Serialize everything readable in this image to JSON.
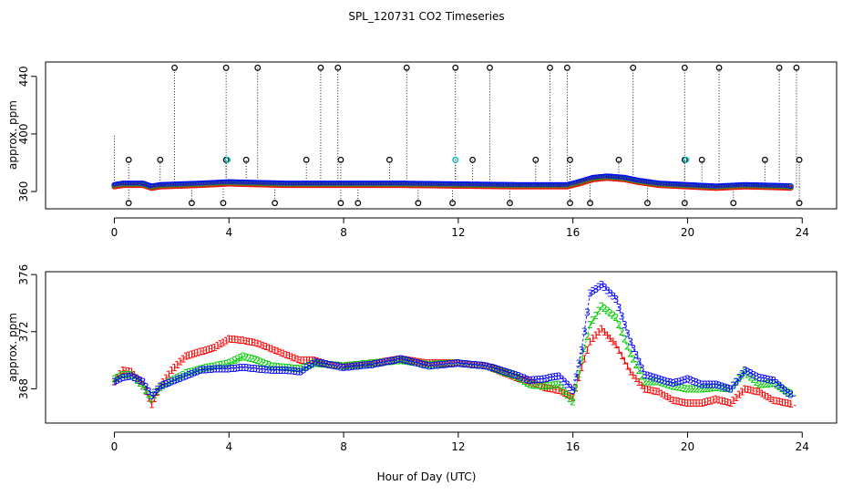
{
  "page_title": "SPL_120731  CO2 Timeseries",
  "common_xlabel": "Hour of Day (UTC)",
  "colors": {
    "axis": "#000000",
    "series1": "#ff0000",
    "series2": "#00cc00",
    "series3": "#0000ff",
    "flag": "#00cccc"
  },
  "chart_data": [
    {
      "type": "scatter",
      "title": "SPL_120731  CO2 Timeseries",
      "xlabel": "",
      "ylabel": "approx. ppm",
      "xlim": [
        0,
        24
      ],
      "ylim": [
        348,
        450
      ],
      "xticks": [
        0,
        4,
        8,
        12,
        16,
        20,
        24
      ],
      "yticks": [
        360,
        400,
        440
      ],
      "baseline": [
        [
          0,
          364
        ],
        [
          0.3,
          365
        ],
        [
          1,
          365
        ],
        [
          1.3,
          363
        ],
        [
          1.6,
          364
        ],
        [
          3,
          365
        ],
        [
          4,
          366
        ],
        [
          6,
          365
        ],
        [
          8,
          365
        ],
        [
          10,
          365
        ],
        [
          12,
          364.5
        ],
        [
          14,
          364
        ],
        [
          15.8,
          364
        ],
        [
          16.2,
          366
        ],
        [
          16.7,
          369
        ],
        [
          17.2,
          370
        ],
        [
          17.8,
          369
        ],
        [
          18.3,
          367
        ],
        [
          19,
          365
        ],
        [
          20,
          364
        ],
        [
          21,
          363
        ],
        [
          22,
          364
        ],
        [
          23,
          363.5
        ],
        [
          23.8,
          363
        ]
      ],
      "spikes_high": [
        2.1,
        3.9,
        5.0,
        7.2,
        7.8,
        10.2,
        11.9,
        13.1,
        15.2,
        15.8,
        18.1,
        19.9,
        21.1,
        23.2,
        23.8
      ],
      "spikes_mid": [
        0.5,
        1.6,
        3.9,
        4.6,
        6.7,
        7.9,
        9.6,
        11.9,
        12.5,
        14.7,
        15.9,
        17.6,
        19.9,
        20.5,
        22.7,
        23.9
      ],
      "spikes_low": [
        0.5,
        2.7,
        3.8,
        5.6,
        7.9,
        8.5,
        10.6,
        11.8,
        13.8,
        15.9,
        16.6,
        18.6,
        19.9,
        21.6,
        23.9
      ],
      "spike_levels": {
        "high": 446,
        "mid": 382,
        "low": 352
      },
      "flag_markers": [
        [
          3.95,
          382
        ],
        [
          11.9,
          382
        ],
        [
          19.95,
          382
        ]
      ]
    },
    {
      "type": "scatter",
      "title": "",
      "xlabel": "Hour of Day (UTC)",
      "ylabel": "approx. ppm",
      "xlim": [
        0,
        24
      ],
      "ylim": [
        365.6,
        376.2
      ],
      "xticks": [
        0,
        4,
        8,
        12,
        16,
        20,
        24
      ],
      "yticks": [
        368,
        372,
        376
      ],
      "gaps": [
        [
          7.9,
          8.0
        ],
        [
          11.9,
          12.0
        ]
      ],
      "series": [
        {
          "name": "1",
          "symbol": "1",
          "color": "#ff0000",
          "points": [
            [
              0,
              368.5
            ],
            [
              0.3,
              369.3
            ],
            [
              0.6,
              369.2
            ],
            [
              1.0,
              368.3
            ],
            [
              1.3,
              366.9
            ],
            [
              1.6,
              368.2
            ],
            [
              2.0,
              369.3
            ],
            [
              2.5,
              370.3
            ],
            [
              3.0,
              370.6
            ],
            [
              3.5,
              370.9
            ],
            [
              4.0,
              371.5
            ],
            [
              4.5,
              371.4
            ],
            [
              5.0,
              371.2
            ],
            [
              5.5,
              370.8
            ],
            [
              6.0,
              370.4
            ],
            [
              6.5,
              370.0
            ],
            [
              7.0,
              370.0
            ],
            [
              7.5,
              369.7
            ],
            [
              8.0,
              369.6
            ],
            [
              9.0,
              369.8
            ],
            [
              10.0,
              370.1
            ],
            [
              11.0,
              369.8
            ],
            [
              12.0,
              369.8
            ],
            [
              13.0,
              369.6
            ],
            [
              14.0,
              368.8
            ],
            [
              14.5,
              368.5
            ],
            [
              15.0,
              368.1
            ],
            [
              15.5,
              367.9
            ],
            [
              16.0,
              367.4
            ],
            [
              16.3,
              369.5
            ],
            [
              16.6,
              371.3
            ],
            [
              17.0,
              372.2
            ],
            [
              17.5,
              371.1
            ],
            [
              18.0,
              369.2
            ],
            [
              18.5,
              368.0
            ],
            [
              19.0,
              367.8
            ],
            [
              19.5,
              367.2
            ],
            [
              20.0,
              367.0
            ],
            [
              20.5,
              367.0
            ],
            [
              21.0,
              367.3
            ],
            [
              21.5,
              367.0
            ],
            [
              22.0,
              368.0
            ],
            [
              22.5,
              367.8
            ],
            [
              23.0,
              367.2
            ],
            [
              23.5,
              367.0
            ],
            [
              23.8,
              366.8
            ]
          ]
        },
        {
          "name": "2",
          "symbol": "2",
          "color": "#00cc00",
          "points": [
            [
              0,
              368.7
            ],
            [
              0.3,
              369.0
            ],
            [
              0.6,
              369.0
            ],
            [
              1.0,
              368.2
            ],
            [
              1.3,
              367.3
            ],
            [
              1.6,
              368.1
            ],
            [
              2.0,
              368.6
            ],
            [
              2.5,
              369.1
            ],
            [
              3.0,
              369.4
            ],
            [
              3.5,
              369.6
            ],
            [
              4.0,
              369.8
            ],
            [
              4.5,
              370.3
            ],
            [
              5.0,
              370.0
            ],
            [
              5.5,
              369.6
            ],
            [
              6.0,
              369.5
            ],
            [
              6.5,
              369.4
            ],
            [
              7.0,
              369.8
            ],
            [
              7.5,
              369.7
            ],
            [
              8.0,
              369.6
            ],
            [
              9.0,
              369.8
            ],
            [
              10.0,
              370.0
            ],
            [
              11.0,
              369.7
            ],
            [
              12.0,
              369.8
            ],
            [
              13.0,
              369.6
            ],
            [
              14.0,
              368.9
            ],
            [
              14.5,
              368.3
            ],
            [
              15.0,
              368.2
            ],
            [
              15.5,
              368.3
            ],
            [
              16.0,
              367.1
            ],
            [
              16.3,
              370.0
            ],
            [
              16.6,
              372.5
            ],
            [
              17.0,
              373.8
            ],
            [
              17.5,
              373.0
            ],
            [
              18.0,
              370.5
            ],
            [
              18.5,
              368.5
            ],
            [
              19.0,
              368.5
            ],
            [
              19.5,
              368.2
            ],
            [
              20.0,
              368.0
            ],
            [
              20.5,
              368.0
            ],
            [
              21.0,
              368.1
            ],
            [
              21.5,
              368.0
            ],
            [
              22.0,
              369.2
            ],
            [
              22.5,
              368.3
            ],
            [
              23.0,
              368.4
            ],
            [
              23.5,
              367.8
            ],
            [
              23.8,
              367.5
            ]
          ]
        },
        {
          "name": "3",
          "symbol": "3",
          "color": "#0000ff",
          "points": [
            [
              0,
              368.5
            ],
            [
              0.3,
              368.8
            ],
            [
              0.6,
              368.9
            ],
            [
              1.0,
              368.5
            ],
            [
              1.3,
              367.5
            ],
            [
              1.6,
              368.2
            ],
            [
              2.0,
              368.5
            ],
            [
              2.5,
              368.9
            ],
            [
              3.0,
              369.3
            ],
            [
              3.5,
              369.4
            ],
            [
              4.0,
              369.4
            ],
            [
              4.5,
              369.5
            ],
            [
              5.0,
              369.4
            ],
            [
              5.5,
              369.3
            ],
            [
              6.0,
              369.3
            ],
            [
              6.5,
              369.2
            ],
            [
              7.0,
              369.9
            ],
            [
              7.5,
              369.7
            ],
            [
              8.0,
              369.5
            ],
            [
              9.0,
              369.7
            ],
            [
              10.0,
              370.1
            ],
            [
              11.0,
              369.6
            ],
            [
              12.0,
              369.8
            ],
            [
              13.0,
              369.6
            ],
            [
              14.0,
              369.0
            ],
            [
              14.5,
              368.6
            ],
            [
              15.0,
              368.7
            ],
            [
              15.5,
              368.9
            ],
            [
              16.0,
              367.9
            ],
            [
              16.3,
              370.7
            ],
            [
              16.6,
              374.7
            ],
            [
              17.0,
              375.3
            ],
            [
              17.5,
              374.3
            ],
            [
              18.0,
              371.3
            ],
            [
              18.5,
              369.0
            ],
            [
              19.0,
              368.7
            ],
            [
              19.5,
              368.4
            ],
            [
              20.0,
              368.7
            ],
            [
              20.5,
              368.3
            ],
            [
              21.0,
              368.3
            ],
            [
              21.5,
              368.0
            ],
            [
              22.0,
              369.3
            ],
            [
              22.5,
              368.8
            ],
            [
              23.0,
              368.6
            ],
            [
              23.5,
              367.7
            ],
            [
              23.8,
              367.4
            ]
          ]
        }
      ]
    }
  ]
}
